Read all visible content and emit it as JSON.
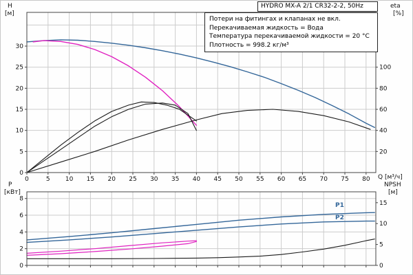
{
  "header": {
    "title": "HYDRO MX-A 2/1 CR32-2-2, 50Hz"
  },
  "info_box": {
    "lines": [
      "Потери на фитингах и клапанах не вкл.",
      "Перекачиваемая жидкость = Вода",
      "Температура перекачиваемой жидкости = 20 °C",
      "Плотность = 998.2 кг/м³"
    ]
  },
  "labels": {
    "h_axis": "H",
    "h_unit": "[м]",
    "eta_axis": "eta",
    "eta_unit": "[%]",
    "q_axis": "Q [м³/ч]",
    "p_axis": "P",
    "p_unit": "[кВт]",
    "npsh_axis": "NPSH",
    "npsh_unit": "[м]",
    "p1": "P1",
    "p2": "P2"
  },
  "colors": {
    "head_dual": "#336699",
    "head_single": "#e020c0",
    "eta": "#1a1a1a",
    "power_dual": "#336699",
    "power_single": "#e020c0",
    "npsh": "#1a1a1a",
    "grid": "#cccccc",
    "frame": "#444444",
    "text": "#111111"
  },
  "chart_data": [
    {
      "name": "qh-eta-chart",
      "type": "line",
      "title": "",
      "xlabel": "Q [м³/ч]",
      "ylabel_left": "H [м]",
      "ylabel_right": "eta [%]",
      "xlim": [
        0,
        82.3
      ],
      "ylim_left": [
        0,
        38
      ],
      "ylim_right": [
        0,
        152
      ],
      "grid": true,
      "x_ticks": [
        0,
        5,
        10,
        15,
        20,
        25,
        30,
        35,
        40,
        45,
        50,
        55,
        60,
        65,
        70,
        75,
        80
      ],
      "y_left_ticks": [
        0,
        5,
        10,
        15,
        20,
        25,
        30
      ],
      "y_grid": [
        5,
        10,
        15,
        20,
        25,
        30,
        35
      ],
      "y_right_ticks": [
        20,
        40,
        60,
        80,
        100
      ],
      "series": [
        {
          "name": "head-dual-pump",
          "axis": "left",
          "color_key": "head_dual",
          "width": 1.4,
          "x": [
            0,
            4,
            8,
            12,
            16,
            20,
            24,
            28,
            32,
            36,
            40,
            44,
            48,
            52,
            56,
            60,
            64,
            68,
            72,
            76,
            80,
            82
          ],
          "y": [
            31.0,
            31.3,
            31.5,
            31.4,
            31.1,
            30.7,
            30.2,
            29.6,
            28.9,
            28.1,
            27.2,
            26.2,
            25.1,
            23.9,
            22.6,
            21.1,
            19.5,
            17.8,
            15.9,
            13.9,
            11.7,
            10.7
          ]
        },
        {
          "name": "head-single-pump",
          "axis": "left",
          "color_key": "head_single",
          "width": 1.4,
          "x": [
            1.5,
            4,
            8,
            12,
            16,
            20,
            24,
            28,
            32,
            36,
            38,
            40
          ],
          "y": [
            31.0,
            31.3,
            31.1,
            30.4,
            29.2,
            27.5,
            25.3,
            22.6,
            19.4,
            15.6,
            13.4,
            11.2
          ]
        },
        {
          "name": "eta-pump-a",
          "axis": "right",
          "color_key": "eta",
          "width": 1.1,
          "x": [
            0,
            4,
            8,
            12,
            16,
            20,
            24,
            27,
            30,
            33,
            36,
            40
          ],
          "y": [
            0,
            13,
            26,
            38,
            49,
            58,
            64,
            67,
            66.5,
            64,
            60,
            49
          ]
        },
        {
          "name": "eta-pump-b",
          "axis": "right",
          "color_key": "eta",
          "width": 1.1,
          "x": [
            0,
            4,
            8,
            12,
            16,
            20,
            24,
            28,
            32,
            35,
            38,
            40
          ],
          "y": [
            0,
            11,
            22,
            33,
            44,
            53,
            60,
            65,
            66,
            64,
            56,
            40
          ]
        },
        {
          "name": "eta-system",
          "axis": "right",
          "color_key": "eta",
          "width": 1.1,
          "x": [
            0,
            8,
            16,
            24,
            32,
            40,
            46,
            52,
            58,
            64,
            70,
            76,
            81
          ],
          "y": [
            0,
            10,
            20,
            31,
            41,
            50,
            56,
            59,
            60,
            58,
            54,
            48,
            41
          ]
        }
      ]
    },
    {
      "name": "power-npsh-chart",
      "type": "line",
      "title": "",
      "xlabel": "",
      "ylabel_left": "P [кВт]",
      "ylabel_right": "NPSH [м]",
      "xlim": [
        0,
        82.3
      ],
      "ylim_left": [
        0,
        8.8
      ],
      "ylim_right": [
        0,
        17.6
      ],
      "grid": true,
      "x_ticks": [
        0,
        5,
        10,
        15,
        20,
        25,
        30,
        35,
        40,
        45,
        50,
        55,
        60,
        65,
        70,
        75,
        80
      ],
      "y_left_ticks": [
        0,
        2,
        4,
        6,
        8
      ],
      "y_grid": [
        2,
        4,
        6,
        8
      ],
      "y_right_ticks": [
        0,
        5,
        10,
        15
      ],
      "series": [
        {
          "name": "power-p1-dual",
          "axis": "left",
          "color_key": "power_dual",
          "width": 1.4,
          "x": [
            0,
            10,
            20,
            30,
            40,
            50,
            60,
            70,
            80,
            82
          ],
          "y": [
            3.05,
            3.45,
            3.9,
            4.4,
            4.9,
            5.4,
            5.8,
            6.1,
            6.3,
            6.32
          ]
        },
        {
          "name": "power-p2-dual",
          "axis": "left",
          "color_key": "power_dual",
          "width": 1.4,
          "x": [
            0,
            10,
            20,
            30,
            40,
            50,
            60,
            70,
            80,
            82
          ],
          "y": [
            2.75,
            3.05,
            3.4,
            3.8,
            4.2,
            4.6,
            4.95,
            5.2,
            5.3,
            5.3
          ]
        },
        {
          "name": "power-p1-single",
          "axis": "left",
          "color_key": "power_single",
          "width": 1.2,
          "x": [
            0,
            8,
            16,
            24,
            32,
            38,
            40
          ],
          "y": [
            1.45,
            1.7,
            2.0,
            2.35,
            2.7,
            2.9,
            2.95
          ]
        },
        {
          "name": "power-p2-single",
          "axis": "left",
          "color_key": "power_single",
          "width": 1.2,
          "x": [
            0,
            8,
            16,
            24,
            32,
            38,
            40
          ],
          "y": [
            1.2,
            1.4,
            1.65,
            1.95,
            2.3,
            2.6,
            2.85
          ]
        },
        {
          "name": "npsh-curve",
          "axis": "right",
          "color_key": "npsh",
          "width": 1.1,
          "x": [
            0,
            10,
            20,
            30,
            40,
            45,
            50,
            55,
            60,
            65,
            70,
            75,
            80,
            82
          ],
          "y": [
            1.6,
            1.6,
            1.6,
            1.65,
            1.75,
            1.85,
            2.0,
            2.2,
            2.6,
            3.2,
            3.9,
            4.8,
            5.9,
            6.3
          ]
        }
      ]
    }
  ]
}
